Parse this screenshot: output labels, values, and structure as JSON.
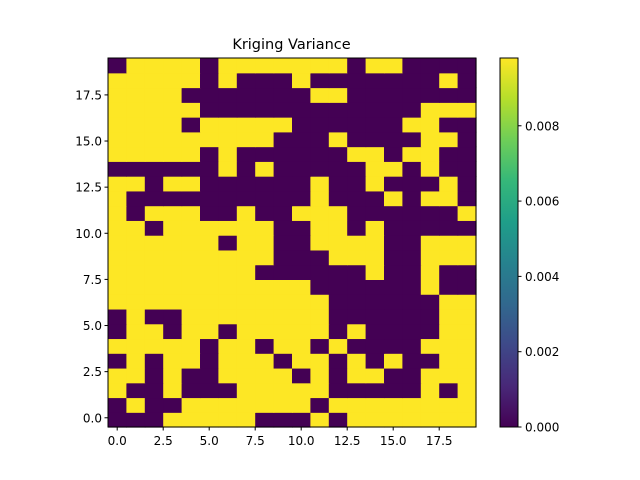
{
  "chart_data": {
    "type": "heatmap",
    "title": "Kriging Variance",
    "xlabel": "",
    "ylabel": "",
    "origin": "lower",
    "x_ticks": [
      "0.0",
      "2.5",
      "5.0",
      "7.5",
      "10.0",
      "12.5",
      "15.0",
      "17.5"
    ],
    "y_ticks": [
      "0.0",
      "2.5",
      "5.0",
      "7.5",
      "10.0",
      "12.5",
      "15.0",
      "17.5"
    ],
    "xlim": [
      -0.5,
      19.5
    ],
    "ylim": [
      -0.5,
      19.5
    ],
    "colormap": "viridis",
    "colormap_stops": [
      "#440154",
      "#482878",
      "#3e4989",
      "#31688e",
      "#26828e",
      "#1f9e89",
      "#35b779",
      "#6ece58",
      "#b5de2b",
      "#fde725"
    ],
    "color_range": [
      0.0,
      0.0098
    ],
    "colorbar_ticks": [
      "0.000",
      "0.002",
      "0.004",
      "0.006",
      "0.008"
    ],
    "grid": false,
    "legend": "colorbar-right",
    "rows_bottom_to_top": [
      "00011111000101111111",
      "01001111111011111111",
      "10010001111100000101",
      "11010011110101100111",
      "01011011101101010011",
      "11111011011010000111",
      "01101101111101000011",
      "01001111111100000011",
      "11111111111100000011",
      "11111111111000000100",
      "11111111000000100100",
      "11111111100011100111",
      "11111101100111100111",
      "11011111100110100000",
      "10111001001110000001",
      "10000000000100010110",
      "11011000000100100010",
      "00000010100000110100",
      "11111010000001101100",
      "11111111100010000110",
      "11110111110000001100",
      "11111000000000000111",
      "11110000000110000000",
      "11111010001000000010",
      "01111011111110110000"
    ]
  }
}
